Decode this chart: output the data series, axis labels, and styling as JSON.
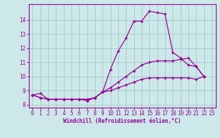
{
  "background_color": "#cce8e8",
  "grid_color": "#aacccc",
  "line_color": "#990099",
  "marker": "+",
  "xlabel": "Windchill (Refroidissement éolien,°C)",
  "xlim": [
    -0.5,
    23.5
  ],
  "ylim": [
    7.8,
    15.1
  ],
  "yticks": [
    8,
    9,
    10,
    11,
    12,
    13,
    14
  ],
  "xticks": [
    0,
    1,
    2,
    3,
    4,
    5,
    6,
    7,
    8,
    9,
    10,
    11,
    12,
    13,
    14,
    15,
    16,
    17,
    18,
    19,
    20,
    21,
    22,
    23
  ],
  "line1_x": [
    0,
    1,
    2,
    3,
    4,
    5,
    6,
    7,
    8,
    9,
    10,
    11,
    12,
    13,
    14,
    15,
    16,
    17,
    18,
    19,
    20,
    21,
    22
  ],
  "line1_y": [
    8.7,
    8.8,
    8.4,
    8.4,
    8.4,
    8.4,
    8.4,
    8.4,
    8.5,
    8.9,
    10.5,
    11.8,
    12.7,
    13.9,
    13.9,
    14.6,
    14.5,
    14.4,
    11.7,
    11.3,
    10.8,
    10.7,
    10.0
  ],
  "line2_x": [
    0,
    1,
    2,
    3,
    4,
    5,
    6,
    7,
    8,
    9,
    10,
    11,
    12,
    13,
    14,
    15,
    16,
    17,
    18,
    19,
    20,
    21,
    22
  ],
  "line2_y": [
    8.7,
    8.5,
    8.4,
    8.4,
    8.4,
    8.4,
    8.4,
    8.3,
    8.5,
    8.9,
    9.2,
    9.6,
    10.0,
    10.4,
    10.8,
    11.0,
    11.1,
    11.1,
    11.1,
    11.2,
    11.3,
    10.7,
    10.0
  ],
  "line3_x": [
    0,
    1,
    2,
    3,
    4,
    5,
    6,
    7,
    8,
    9,
    10,
    11,
    12,
    13,
    14,
    15,
    16,
    17,
    18,
    19,
    20,
    21,
    22
  ],
  "line3_y": [
    8.7,
    8.5,
    8.4,
    8.4,
    8.4,
    8.4,
    8.4,
    8.3,
    8.5,
    8.9,
    9.0,
    9.2,
    9.4,
    9.6,
    9.8,
    9.9,
    9.9,
    9.9,
    9.9,
    9.9,
    9.9,
    9.8,
    10.0
  ]
}
